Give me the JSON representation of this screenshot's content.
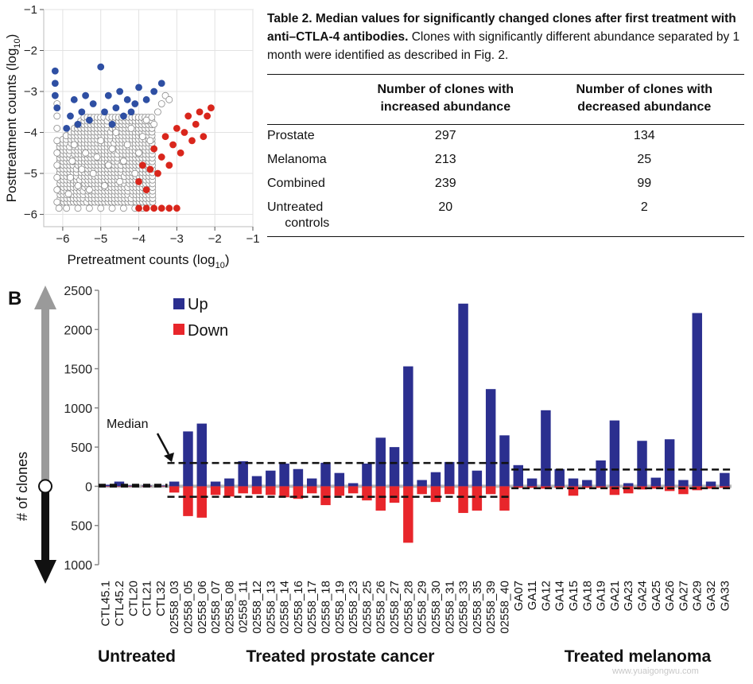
{
  "figure_panel_label": "B",
  "table": {
    "caption_bold": "Table 2. Median values for significantly changed clones after first treatment with anti–CTLA-4 antibodies.",
    "caption_rest": " Clones with significantly different abundance separated by 1 month were identified as described in Fig. 2.",
    "col_increased": "Number of clones with increased abundance",
    "col_decreased": "Number of clones with decreased abundance",
    "rows": [
      {
        "name": "Prostate",
        "increased": "297",
        "decreased": "134"
      },
      {
        "name": "Melanoma",
        "increased": "213",
        "decreased": "25"
      },
      {
        "name": "Combined",
        "increased": "239",
        "decreased": "99"
      },
      {
        "name": "Untreated controls",
        "increased": "20",
        "decreased": "2"
      }
    ]
  },
  "watermark": "www.yuaigongwu.com",
  "chart_data": [
    {
      "type": "scatter",
      "xlabel": "Pretreatment counts (log10)",
      "ylabel": "Posttreatment counts (log10)",
      "xlim": [
        -6.5,
        -1
      ],
      "ylim": [
        -6.3,
        -1
      ],
      "xticks": [
        -6,
        -5,
        -4,
        -3,
        -2,
        -1
      ],
      "yticks": [
        -6,
        -5,
        -4,
        -3,
        -2,
        -1
      ],
      "grid": true,
      "series": [
        {
          "color": "#ffffff",
          "values": [
            [
              -6.1,
              -5.85
            ],
            [
              -5.9,
              -5.85
            ],
            [
              -5.6,
              -5.85
            ],
            [
              -5.3,
              -5.85
            ],
            [
              -5.0,
              -5.85
            ],
            [
              -4.7,
              -5.85
            ],
            [
              -4.4,
              -5.85
            ],
            [
              -4.1,
              -5.85
            ],
            [
              -3.9,
              -5.85
            ],
            [
              -6.15,
              -3.3
            ],
            [
              -6.15,
              -3.6
            ],
            [
              -6.15,
              -3.9
            ],
            [
              -6.15,
              -4.2
            ],
            [
              -6.15,
              -4.5
            ],
            [
              -6.15,
              -4.8
            ],
            [
              -6.15,
              -5.1
            ],
            [
              -6.15,
              -5.4
            ],
            [
              -6.15,
              -5.7
            ],
            [
              -5.85,
              -5.5
            ],
            [
              -5.8,
              -5.1
            ],
            [
              -5.75,
              -4.7
            ],
            [
              -5.7,
              -4.3
            ],
            [
              -5.6,
              -5.3
            ],
            [
              -5.5,
              -4.9
            ],
            [
              -5.4,
              -4.5
            ],
            [
              -5.3,
              -5.4
            ],
            [
              -5.2,
              -5.0
            ],
            [
              -5.1,
              -4.6
            ],
            [
              -5.0,
              -4.2
            ],
            [
              -4.9,
              -5.3
            ],
            [
              -4.8,
              -4.8
            ],
            [
              -4.7,
              -4.4
            ],
            [
              -4.6,
              -4.0
            ],
            [
              -4.5,
              -5.2
            ],
            [
              -4.4,
              -4.7
            ],
            [
              -4.3,
              -4.3
            ],
            [
              -4.2,
              -3.9
            ],
            [
              -4.1,
              -5.0
            ],
            [
              -4.0,
              -4.5
            ],
            [
              -3.9,
              -4.1
            ],
            [
              -3.8,
              -3.7
            ],
            [
              -3.7,
              -4.2
            ],
            [
              -3.6,
              -3.8
            ],
            [
              -3.5,
              -3.5
            ],
            [
              -3.4,
              -3.3
            ],
            [
              -3.3,
              -3.1
            ],
            [
              -3.2,
              -3.2
            ]
          ]
        },
        {
          "color": "#2e4fa3",
          "values": [
            [
              -6.2,
              -2.5
            ],
            [
              -6.2,
              -2.8
            ],
            [
              -6.2,
              -3.1
            ],
            [
              -6.15,
              -3.4
            ],
            [
              -5.9,
              -3.9
            ],
            [
              -5.8,
              -3.6
            ],
            [
              -5.7,
              -3.2
            ],
            [
              -5.6,
              -3.8
            ],
            [
              -5.5,
              -3.5
            ],
            [
              -5.4,
              -3.1
            ],
            [
              -5.3,
              -3.7
            ],
            [
              -5.2,
              -3.3
            ],
            [
              -5.0,
              -2.4
            ],
            [
              -4.9,
              -3.5
            ],
            [
              -4.8,
              -3.1
            ],
            [
              -4.7,
              -3.8
            ],
            [
              -4.6,
              -3.4
            ],
            [
              -4.5,
              -3.0
            ],
            [
              -4.4,
              -3.6
            ],
            [
              -4.3,
              -3.2
            ],
            [
              -4.2,
              -3.5
            ],
            [
              -4.1,
              -3.3
            ],
            [
              -4.0,
              -2.9
            ],
            [
              -3.8,
              -3.2
            ],
            [
              -3.6,
              -3.0
            ],
            [
              -3.4,
              -2.8
            ]
          ]
        },
        {
          "color": "#d9261c",
          "values": [
            [
              -4.0,
              -5.85
            ],
            [
              -3.8,
              -5.85
            ],
            [
              -3.6,
              -5.85
            ],
            [
              -3.4,
              -5.85
            ],
            [
              -3.2,
              -5.85
            ],
            [
              -3.0,
              -5.85
            ],
            [
              -4.0,
              -5.2
            ],
            [
              -3.9,
              -4.8
            ],
            [
              -3.8,
              -5.4
            ],
            [
              -3.7,
              -4.9
            ],
            [
              -3.6,
              -4.4
            ],
            [
              -3.5,
              -5.0
            ],
            [
              -3.4,
              -4.6
            ],
            [
              -3.3,
              -4.1
            ],
            [
              -3.2,
              -4.8
            ],
            [
              -3.1,
              -4.3
            ],
            [
              -3.0,
              -3.9
            ],
            [
              -2.9,
              -4.5
            ],
            [
              -2.8,
              -4.0
            ],
            [
              -2.7,
              -3.6
            ],
            [
              -2.6,
              -4.2
            ],
            [
              -2.5,
              -3.8
            ],
            [
              -2.4,
              -3.5
            ],
            [
              -2.3,
              -4.1
            ],
            [
              -2.2,
              -3.6
            ],
            [
              -2.1,
              -3.4
            ]
          ]
        }
      ]
    },
    {
      "type": "bar",
      "ylabel": "# of clones",
      "ylim": [
        -1000,
        2500
      ],
      "ytick_labels": [
        "1000",
        "500",
        "0",
        "500",
        "1000",
        "1500",
        "2000",
        "2500"
      ],
      "ytick_values": [
        -1000,
        -500,
        0,
        500,
        1000,
        1500,
        2000,
        2500
      ],
      "categories": [
        "CTL45.1",
        "CTL45.2",
        "CTL20",
        "CTL21",
        "CTL32",
        "02558_03",
        "02558_05",
        "02558_06",
        "02558_07",
        "02558_08",
        "02558_11",
        "02558_12",
        "02558_13",
        "02558_14",
        "02558_16",
        "02558_17",
        "02558_18",
        "02558_19",
        "02558_23",
        "02558_25",
        "02558_26",
        "02558_27",
        "02558_28",
        "02558_29",
        "02558_30",
        "02558_31",
        "02558_33",
        "02558_35",
        "02558_39",
        "02558_40",
        "GA07",
        "GA11",
        "GA12",
        "GA14",
        "GA15",
        "GA18",
        "GA19",
        "GA21",
        "GA23",
        "GA24",
        "GA25",
        "GA26",
        "GA27",
        "GA29",
        "GA32",
        "GA33"
      ],
      "series": [
        {
          "name": "Up",
          "color": "#2b2f8f",
          "values": [
            20,
            60,
            10,
            10,
            10,
            60,
            700,
            800,
            60,
            100,
            320,
            130,
            200,
            290,
            220,
            100,
            300,
            170,
            40,
            290,
            620,
            500,
            1530,
            80,
            180,
            310,
            2330,
            200,
            1240,
            650,
            270,
            100,
            970,
            220,
            100,
            80,
            330,
            840,
            40,
            580,
            110,
            600,
            80,
            2210,
            60,
            170
          ]
        },
        {
          "name": "Down",
          "color": "#e8262b",
          "values": [
            -5,
            -5,
            -5,
            -5,
            -5,
            -80,
            -380,
            -400,
            -110,
            -130,
            -90,
            -100,
            -110,
            -140,
            -160,
            -90,
            -240,
            -120,
            -90,
            -180,
            -310,
            -210,
            -720,
            -100,
            -200,
            -100,
            -340,
            -310,
            -100,
            -310,
            -20,
            -20,
            -30,
            -20,
            -120,
            -20,
            -20,
            -110,
            -90,
            -40,
            -30,
            -60,
            -100,
            -50,
            -30,
            -20
          ]
        }
      ],
      "legend_position": "top-left",
      "medians": [
        {
          "group": "Untreated",
          "up": 20,
          "down": -2
        },
        {
          "group": "Treated prostate cancer",
          "up": 297,
          "down": -134
        },
        {
          "group": "Treated melanoma",
          "up": 213,
          "down": -25
        }
      ],
      "median_label": "Median",
      "group_labels": [
        "Untreated",
        "Treated prostate cancer",
        "Treated melanoma"
      ]
    }
  ]
}
